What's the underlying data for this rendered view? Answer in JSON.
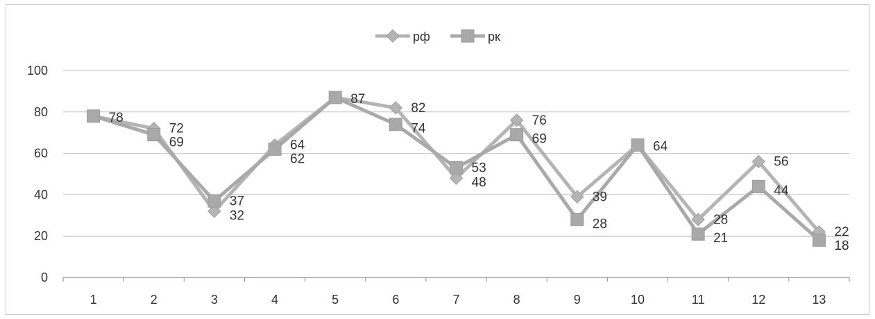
{
  "chart_data": {
    "type": "line",
    "title": "",
    "xlabel": "",
    "ylabel": "",
    "categories": [
      "1",
      "2",
      "3",
      "4",
      "5",
      "6",
      "7",
      "8",
      "9",
      "10",
      "11",
      "12",
      "13"
    ],
    "ylim": [
      0,
      100
    ],
    "yticks": [
      0,
      20,
      40,
      60,
      80,
      100
    ],
    "grid": true,
    "legend_position": "top-center",
    "series": [
      {
        "name": "рф",
        "marker": "diamond",
        "color": "#b4b4b4",
        "values": [
          78,
          72,
          32,
          64,
          87,
          82,
          48,
          76,
          39,
          64,
          28,
          56,
          22
        ]
      },
      {
        "name": "рк",
        "marker": "square",
        "color": "#a9a9a9",
        "values": [
          78,
          69,
          37,
          62,
          87,
          74,
          53,
          69,
          28,
          64,
          21,
          44,
          18
        ]
      }
    ],
    "data_labels": [
      {
        "category_index": 0,
        "texts": [
          "78"
        ]
      },
      {
        "category_index": 1,
        "texts": [
          "72",
          "69"
        ]
      },
      {
        "category_index": 2,
        "texts": [
          "37",
          "32"
        ]
      },
      {
        "category_index": 3,
        "texts": [
          "64",
          "62"
        ]
      },
      {
        "category_index": 4,
        "texts": [
          "87"
        ]
      },
      {
        "category_index": 5,
        "texts": [
          "82",
          "74"
        ]
      },
      {
        "category_index": 6,
        "texts": [
          "53",
          "48"
        ]
      },
      {
        "category_index": 7,
        "texts": [
          "76",
          "69"
        ]
      },
      {
        "category_index": 8,
        "texts": [
          "39",
          "28"
        ]
      },
      {
        "category_index": 9,
        "texts": [
          "64"
        ]
      },
      {
        "category_index": 10,
        "texts": [
          "28",
          "21"
        ]
      },
      {
        "category_index": 11,
        "texts": [
          "56",
          "44"
        ]
      },
      {
        "category_index": 12,
        "texts": [
          "22",
          "18"
        ]
      }
    ]
  }
}
